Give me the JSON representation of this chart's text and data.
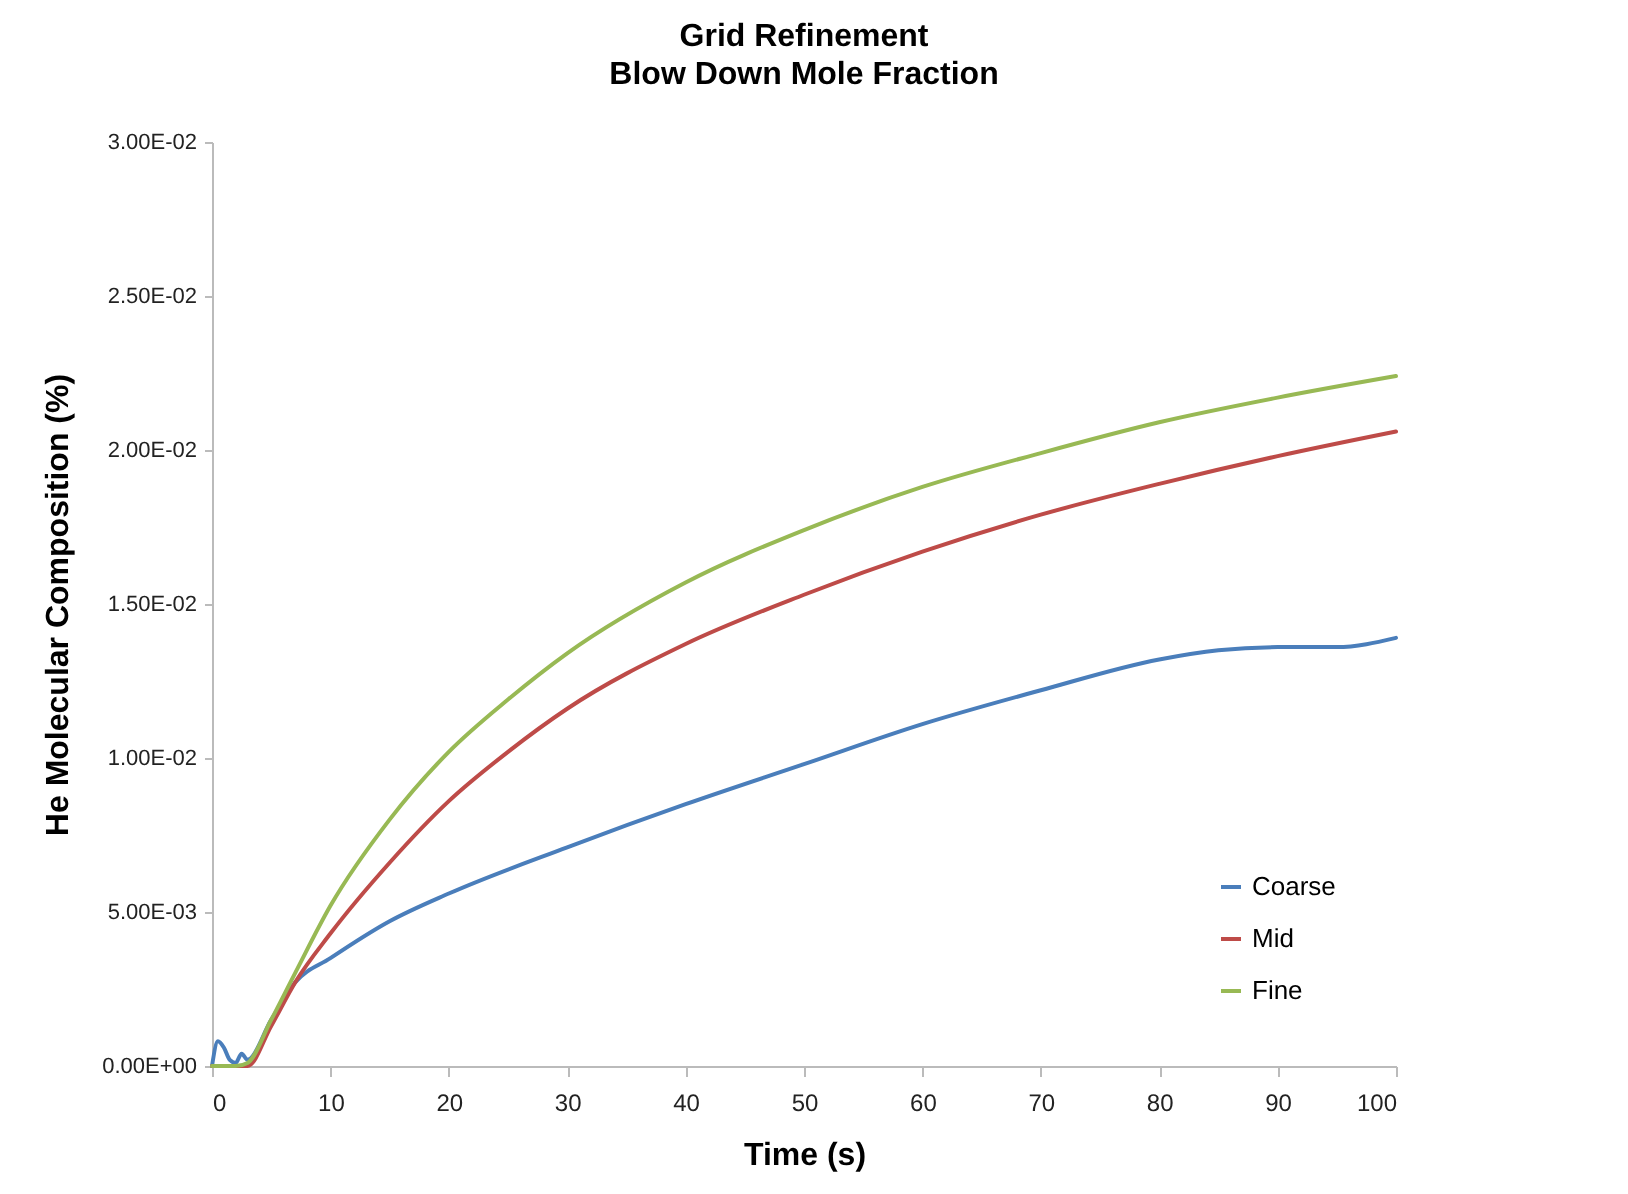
{
  "chart_data": {
    "type": "line",
    "title": "Grid Refinement",
    "subtitle": "Blow Down Mole Fraction",
    "xlabel": "Time (s)",
    "ylabel": "He Molecular Composition (%)",
    "series": [
      {
        "name": "Coarse",
        "color": "#4a7ebb",
        "x": [
          0,
          0.5,
          1,
          1.5,
          2,
          2.5,
          3,
          5,
          7,
          10,
          15,
          20,
          30,
          40,
          50,
          60,
          70,
          80,
          85,
          90,
          95,
          100
        ],
        "values": [
          0,
          0.0008,
          0.0006,
          0.0002,
          0.0001,
          0.0004,
          0.0002,
          0.0015,
          0.0027,
          0.0035,
          0.0047,
          0.0056,
          0.0071,
          0.0085,
          0.0098,
          0.0111,
          0.0122,
          0.0132,
          0.0135,
          0.0136,
          0.0136,
          0.0139
        ]
      },
      {
        "name": "Mid",
        "color": "#be4b48",
        "x": [
          0,
          3,
          5,
          7,
          10,
          15,
          20,
          25,
          30,
          40,
          50,
          60,
          70,
          80,
          90,
          100
        ],
        "values": [
          0,
          0,
          0.0013,
          0.0027,
          0.0043,
          0.0066,
          0.0086,
          0.0102,
          0.0116,
          0.0137,
          0.0153,
          0.0167,
          0.0179,
          0.0189,
          0.0198,
          0.0206
        ]
      },
      {
        "name": "Fine",
        "color": "#98b954",
        "x": [
          0,
          2,
          3,
          5,
          7,
          10,
          15,
          20,
          25,
          30,
          40,
          50,
          60,
          70,
          80,
          90,
          100
        ],
        "values": [
          0,
          0,
          0.0001,
          0.0015,
          0.003,
          0.0052,
          0.008,
          0.0102,
          0.0119,
          0.0134,
          0.0157,
          0.0174,
          0.0188,
          0.0199,
          0.0209,
          0.0217,
          0.0224
        ]
      }
    ],
    "xlim": [
      0,
      100
    ],
    "xticks": [
      0,
      10,
      20,
      30,
      40,
      50,
      60,
      70,
      80,
      90,
      100
    ],
    "ylim": [
      0,
      0.03
    ],
    "yticks": [
      {
        "value": 0,
        "label": "0.00E+00"
      },
      {
        "value": 0.005,
        "label": "5.00E-03"
      },
      {
        "value": 0.01,
        "label": "1.00E-02"
      },
      {
        "value": 0.015,
        "label": "1.50E-02"
      },
      {
        "value": 0.02,
        "label": "2.00E-02"
      },
      {
        "value": 0.025,
        "label": "2.50E-02"
      },
      {
        "value": 0.03,
        "label": "3.00E-02"
      }
    ],
    "grid": false,
    "legend": "bottom right",
    "marker": "none",
    "line_style": "solid"
  }
}
